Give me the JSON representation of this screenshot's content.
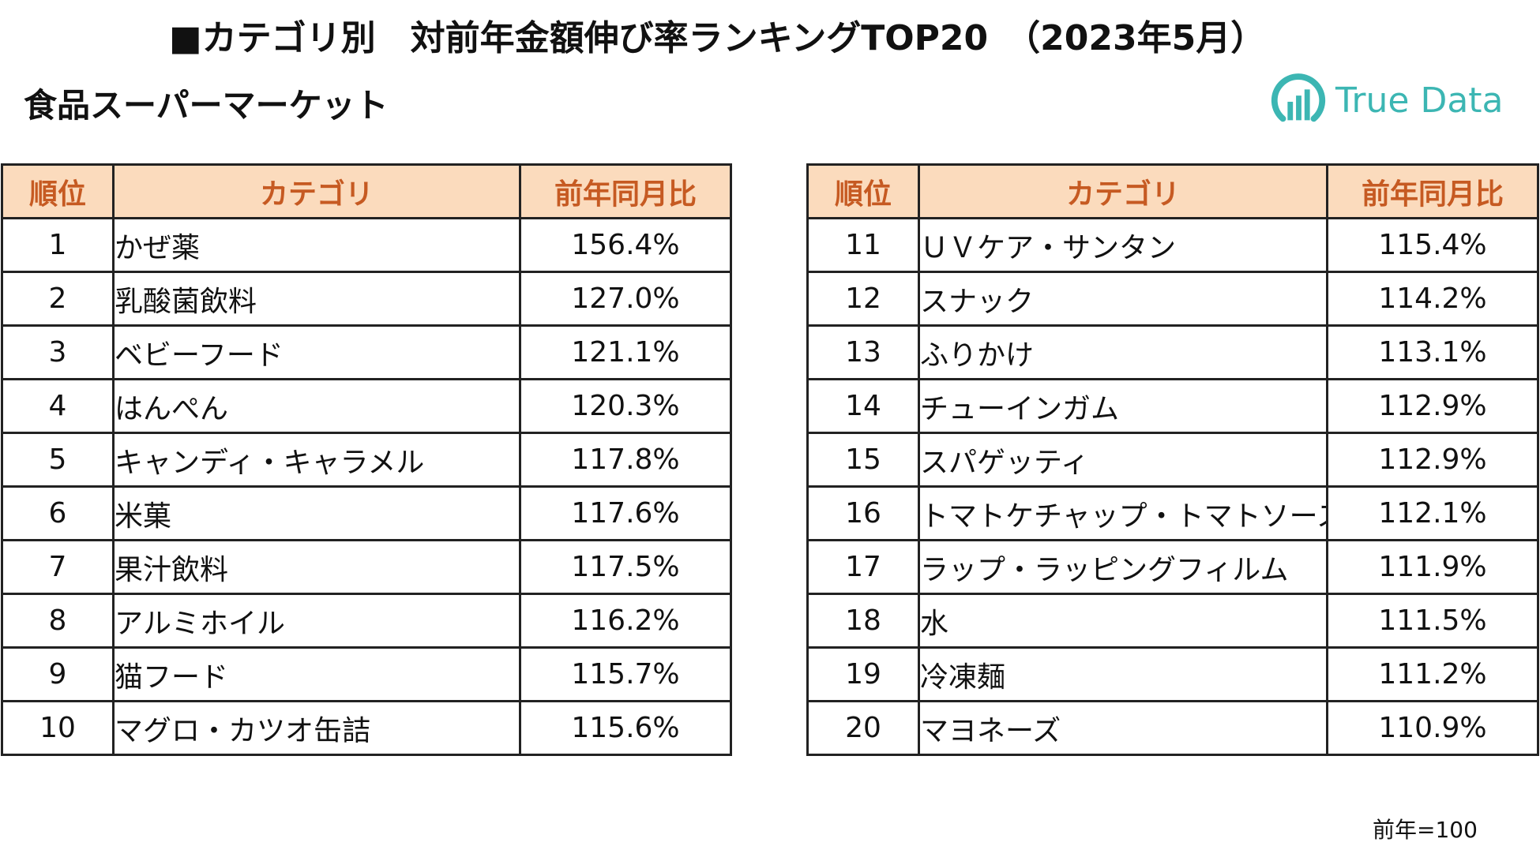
{
  "header": {
    "title": "■カテゴリ別　対前年金額伸び率ランキングTOP20　（2023年5月）",
    "subtitle": "食品スーパーマーケット",
    "logo_text": "True Data"
  },
  "table": {
    "headers": [
      "順位",
      "カテゴリ",
      "前年同月比"
    ],
    "left_rows": [
      {
        "rank": "1",
        "category": "かぜ薬",
        "value": "156.4%"
      },
      {
        "rank": "2",
        "category": "乳酸菌飲料",
        "value": "127.0%"
      },
      {
        "rank": "3",
        "category": "ベビーフード",
        "value": "121.1%"
      },
      {
        "rank": "4",
        "category": "はんぺん",
        "value": "120.3%"
      },
      {
        "rank": "5",
        "category": "キャンディ・キャラメル",
        "value": "117.8%"
      },
      {
        "rank": "6",
        "category": "米菓",
        "value": "117.6%"
      },
      {
        "rank": "7",
        "category": "果汁飲料",
        "value": "117.5%"
      },
      {
        "rank": "8",
        "category": "アルミホイル",
        "value": "116.2%"
      },
      {
        "rank": "9",
        "category": "猫フード",
        "value": "115.7%"
      },
      {
        "rank": "10",
        "category": "マグロ・カツオ缶詰",
        "value": "115.6%"
      }
    ],
    "right_rows": [
      {
        "rank": "11",
        "category": "ＵＶケア・サンタン",
        "value": "115.4%"
      },
      {
        "rank": "12",
        "category": "スナック",
        "value": "114.2%"
      },
      {
        "rank": "13",
        "category": "ふりかけ",
        "value": "113.1%"
      },
      {
        "rank": "14",
        "category": "チューインガム",
        "value": "112.9%"
      },
      {
        "rank": "15",
        "category": "スパゲッティ",
        "value": "112.9%"
      },
      {
        "rank": "16",
        "category": "トマトケチャップ・トマトソース",
        "value": "112.1%"
      },
      {
        "rank": "17",
        "category": "ラップ・ラッピングフィルム",
        "value": "111.9%"
      },
      {
        "rank": "18",
        "category": "水",
        "value": "111.5%"
      },
      {
        "rank": "19",
        "category": "冷凍麺",
        "value": "111.2%"
      },
      {
        "rank": "20",
        "category": "マヨネーズ",
        "value": "110.9%"
      }
    ]
  },
  "footnote": "前年=100",
  "colors": {
    "header_bg": "#fbdbbd",
    "header_text": "#c65a22",
    "logo": "#3cb6b3",
    "border": "#222222"
  },
  "icons": {
    "logo": "truedata-logo-icon"
  }
}
